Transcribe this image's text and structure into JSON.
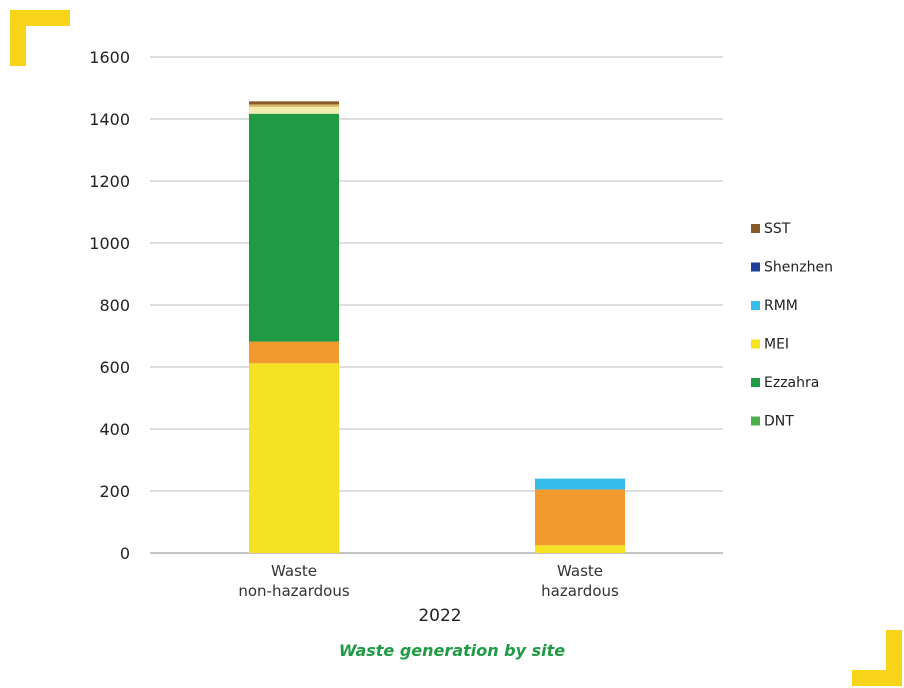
{
  "caption": "Waste generation by site",
  "chart_data": {
    "type": "bar",
    "stacked": true,
    "categories": [
      [
        "Waste",
        "non-hazardous"
      ],
      [
        "Waste",
        "hazardous"
      ]
    ],
    "xlabel": "2022",
    "ylabel": "",
    "ylim": [
      0,
      1600
    ],
    "yticks": [
      0,
      200,
      400,
      600,
      800,
      1000,
      1200,
      1400,
      1600
    ],
    "grid": true,
    "legend_position": "right",
    "series": [
      {
        "name": "DNT",
        "color": "#4cae4f",
        "values": [
          0,
          0
        ]
      },
      {
        "name": "Ezzahra",
        "color": "#1f9a45",
        "values": [
          735,
          0
        ]
      },
      {
        "name": "MEI",
        "color": "#f5e223",
        "values": [
          612,
          25
        ]
      },
      {
        "name": "RMM",
        "color": "#34bdea",
        "values": [
          0,
          35
        ]
      },
      {
        "name": "Shenzhen",
        "color": "#1f3f99",
        "values": [
          0,
          0
        ]
      },
      {
        "name": "SST",
        "color": "#8b5a2b",
        "values": [
          10,
          0
        ]
      }
    ],
    "extra_segments": [
      {
        "color": "#f39a2e",
        "values": [
          70,
          180
        ]
      },
      {
        "color": "#f3ecb0",
        "values": [
          22,
          0
        ]
      },
      {
        "color": "#d9b868",
        "values": [
          8,
          0
        ]
      }
    ]
  }
}
